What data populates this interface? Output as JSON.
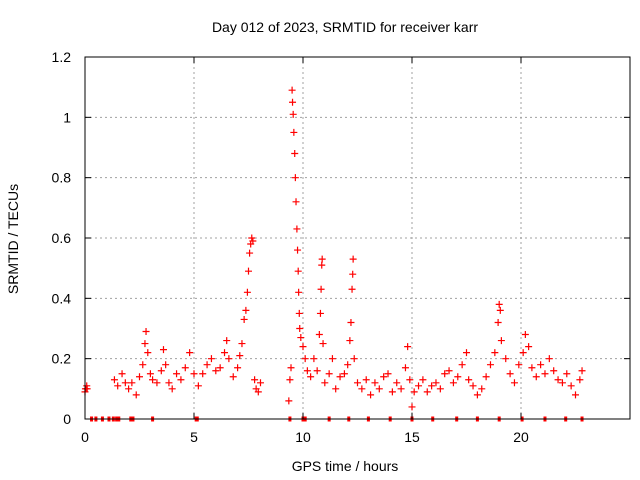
{
  "colors": {
    "series": "#ff0000",
    "grid": "#a0a0a0",
    "axis": "#000000"
  },
  "chart_data": {
    "type": "scatter",
    "marker": "plus",
    "title": "Day 012 of 2023, SRMTID for receiver karr",
    "xlabel": "GPS time / hours",
    "ylabel": "SRMTID / TECUs",
    "xlim": [
      0,
      25
    ],
    "ylim": [
      0,
      1.2
    ],
    "grid": true,
    "xticks": [
      0,
      5,
      10,
      15,
      20
    ],
    "yticks": [
      0,
      0.2,
      0.4,
      0.6,
      0.8,
      1,
      1.2
    ],
    "ytick_labels": [
      "0",
      "0.2",
      "0.4",
      "0.6",
      "0.8",
      "1",
      "1.2"
    ],
    "series": [
      {
        "name": "karr",
        "points": [
          [
            0.0,
            0.09
          ],
          [
            0.02,
            0.1
          ],
          [
            0.05,
            0.1
          ],
          [
            0.08,
            0.11
          ],
          [
            0.1,
            0.1
          ],
          [
            1.35,
            0.13
          ],
          [
            1.5,
            0.11
          ],
          [
            1.7,
            0.15
          ],
          [
            1.85,
            0.12
          ],
          [
            2.0,
            0.1
          ],
          [
            2.15,
            0.12
          ],
          [
            2.35,
            0.08
          ],
          [
            2.5,
            0.14
          ],
          [
            2.65,
            0.18
          ],
          [
            2.75,
            0.25
          ],
          [
            2.8,
            0.29
          ],
          [
            2.88,
            0.22
          ],
          [
            3.0,
            0.15
          ],
          [
            3.1,
            0.13
          ],
          [
            3.3,
            0.12
          ],
          [
            3.5,
            0.16
          ],
          [
            3.6,
            0.23
          ],
          [
            3.7,
            0.18
          ],
          [
            3.85,
            0.12
          ],
          [
            4.0,
            0.1
          ],
          [
            4.2,
            0.15
          ],
          [
            4.4,
            0.13
          ],
          [
            4.6,
            0.17
          ],
          [
            4.8,
            0.22
          ],
          [
            5.0,
            0.15
          ],
          [
            5.2,
            0.11
          ],
          [
            5.4,
            0.15
          ],
          [
            5.6,
            0.18
          ],
          [
            5.8,
            0.2
          ],
          [
            6.0,
            0.16
          ],
          [
            6.2,
            0.17
          ],
          [
            6.4,
            0.22
          ],
          [
            6.5,
            0.26
          ],
          [
            6.6,
            0.2
          ],
          [
            6.8,
            0.14
          ],
          [
            7.0,
            0.17
          ],
          [
            7.1,
            0.21
          ],
          [
            7.2,
            0.25
          ],
          [
            7.3,
            0.33
          ],
          [
            7.38,
            0.36
          ],
          [
            7.45,
            0.42
          ],
          [
            7.5,
            0.49
          ],
          [
            7.55,
            0.55
          ],
          [
            7.6,
            0.58
          ],
          [
            7.65,
            0.6
          ],
          [
            7.7,
            0.59
          ],
          [
            7.78,
            0.13
          ],
          [
            7.85,
            0.1
          ],
          [
            7.95,
            0.09
          ],
          [
            8.05,
            0.12
          ],
          [
            9.35,
            0.06
          ],
          [
            9.4,
            0.13
          ],
          [
            9.45,
            0.17
          ],
          [
            9.5,
            1.09
          ],
          [
            9.52,
            1.05
          ],
          [
            9.55,
            1.01
          ],
          [
            9.58,
            0.95
          ],
          [
            9.62,
            0.88
          ],
          [
            9.65,
            0.8
          ],
          [
            9.68,
            0.72
          ],
          [
            9.72,
            0.63
          ],
          [
            9.75,
            0.56
          ],
          [
            9.78,
            0.49
          ],
          [
            9.8,
            0.42
          ],
          [
            9.83,
            0.35
          ],
          [
            9.85,
            0.3
          ],
          [
            9.9,
            0.27
          ],
          [
            10.0,
            0.24
          ],
          [
            10.1,
            0.2
          ],
          [
            10.2,
            0.16
          ],
          [
            10.35,
            0.14
          ],
          [
            10.5,
            0.2
          ],
          [
            10.65,
            0.16
          ],
          [
            10.75,
            0.28
          ],
          [
            10.8,
            0.35
          ],
          [
            10.83,
            0.43
          ],
          [
            10.86,
            0.51
          ],
          [
            10.88,
            0.53
          ],
          [
            10.92,
            0.25
          ],
          [
            11.0,
            0.12
          ],
          [
            11.2,
            0.15
          ],
          [
            11.35,
            0.2
          ],
          [
            11.5,
            0.1
          ],
          [
            11.7,
            0.14
          ],
          [
            11.9,
            0.15
          ],
          [
            12.05,
            0.18
          ],
          [
            12.15,
            0.26
          ],
          [
            12.2,
            0.32
          ],
          [
            12.25,
            0.43
          ],
          [
            12.28,
            0.48
          ],
          [
            12.3,
            0.53
          ],
          [
            12.35,
            0.2
          ],
          [
            12.5,
            0.12
          ],
          [
            12.7,
            0.1
          ],
          [
            12.9,
            0.13
          ],
          [
            13.1,
            0.08
          ],
          [
            13.3,
            0.12
          ],
          [
            13.5,
            0.1
          ],
          [
            13.7,
            0.14
          ],
          [
            13.9,
            0.15
          ],
          [
            14.1,
            0.09
          ],
          [
            14.3,
            0.12
          ],
          [
            14.5,
            0.1
          ],
          [
            14.7,
            0.17
          ],
          [
            14.8,
            0.24
          ],
          [
            14.9,
            0.13
          ],
          [
            15.0,
            0.04
          ],
          [
            15.1,
            0.09
          ],
          [
            15.3,
            0.11
          ],
          [
            15.5,
            0.13
          ],
          [
            15.7,
            0.09
          ],
          [
            15.9,
            0.11
          ],
          [
            16.1,
            0.12
          ],
          [
            16.3,
            0.1
          ],
          [
            16.5,
            0.15
          ],
          [
            16.7,
            0.16
          ],
          [
            16.9,
            0.12
          ],
          [
            17.1,
            0.14
          ],
          [
            17.3,
            0.18
          ],
          [
            17.5,
            0.22
          ],
          [
            17.6,
            0.13
          ],
          [
            17.8,
            0.11
          ],
          [
            18.0,
            0.08
          ],
          [
            18.2,
            0.1
          ],
          [
            18.4,
            0.14
          ],
          [
            18.6,
            0.18
          ],
          [
            18.8,
            0.22
          ],
          [
            18.95,
            0.32
          ],
          [
            19.0,
            0.38
          ],
          [
            19.05,
            0.36
          ],
          [
            19.1,
            0.26
          ],
          [
            19.3,
            0.2
          ],
          [
            19.5,
            0.15
          ],
          [
            19.7,
            0.12
          ],
          [
            19.9,
            0.18
          ],
          [
            20.1,
            0.22
          ],
          [
            20.2,
            0.28
          ],
          [
            20.35,
            0.24
          ],
          [
            20.5,
            0.17
          ],
          [
            20.7,
            0.14
          ],
          [
            20.9,
            0.18
          ],
          [
            21.1,
            0.15
          ],
          [
            21.3,
            0.2
          ],
          [
            21.5,
            0.16
          ],
          [
            21.7,
            0.13
          ],
          [
            21.9,
            0.12
          ],
          [
            22.1,
            0.15
          ],
          [
            22.3,
            0.11
          ],
          [
            22.5,
            0.08
          ],
          [
            22.7,
            0.13
          ],
          [
            22.8,
            0.16
          ]
        ]
      }
    ],
    "zero_markers": [
      0.3,
      0.5,
      0.8,
      1.1,
      1.3,
      1.45,
      1.55,
      2.1,
      2.2,
      3.1,
      5.1,
      5.15,
      9.4,
      10.0,
      10.1,
      11.2,
      12.1,
      13.0,
      14.0,
      15.0,
      15.95,
      17.05,
      18.0,
      19.0,
      20.05,
      21.1,
      22.05,
      22.8
    ]
  }
}
